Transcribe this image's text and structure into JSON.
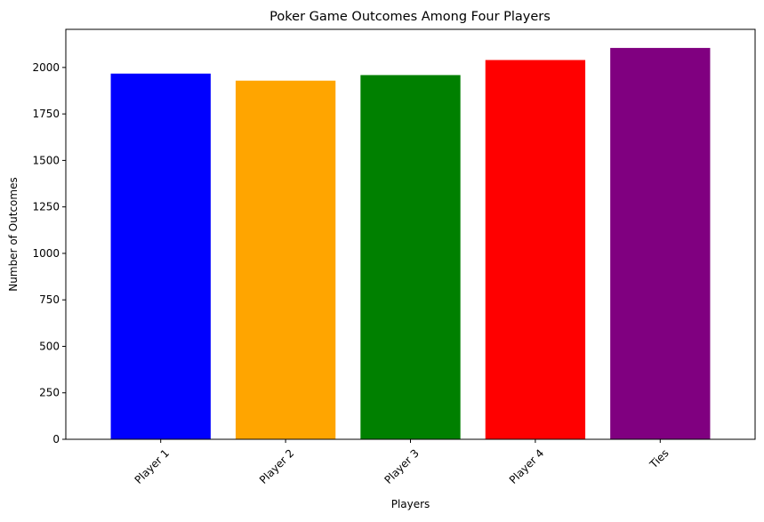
{
  "chart_data": {
    "type": "bar",
    "title": "Poker Game Outcomes Among Four Players",
    "xlabel": "Players",
    "ylabel": "Number of Outcomes",
    "categories": [
      "Player 1",
      "Player 2",
      "Player 3",
      "Player 4",
      "Ties"
    ],
    "values": [
      1967,
      1929,
      1959,
      2040,
      2105
    ],
    "colors": [
      "#0000ff",
      "#ffa500",
      "#008000",
      "#ff0000",
      "#800080"
    ],
    "ylim": [
      0,
      2205
    ],
    "yticks": [
      0,
      250,
      500,
      750,
      1000,
      1250,
      1500,
      1750,
      2000
    ],
    "xtick_rotation_deg": 45,
    "grid": false,
    "legend": "none"
  }
}
